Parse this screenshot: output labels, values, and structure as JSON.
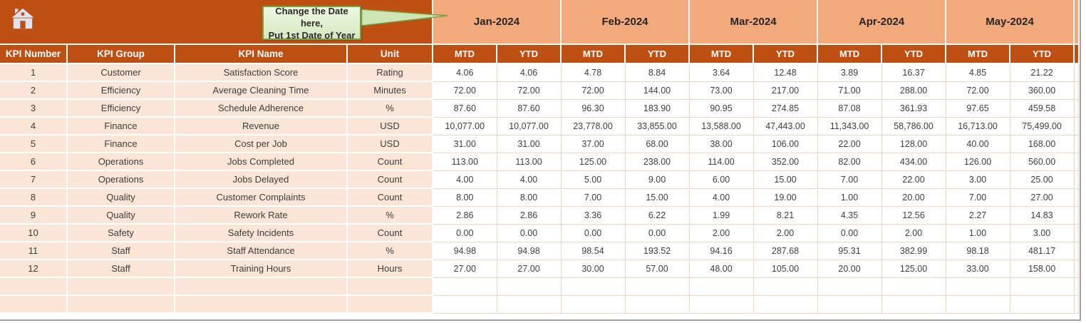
{
  "callout": {
    "line1": "Change the Date here,",
    "line2": "Put 1st Date of Year"
  },
  "months": [
    "Jan-2024",
    "Feb-2024",
    "Mar-2024",
    "Apr-2024",
    "May-2024"
  ],
  "subheaders": {
    "mtd": "MTD",
    "ytd": "YTD"
  },
  "left_headers": [
    "KPI Number",
    "KPI Group",
    "KPI Name",
    "Unit"
  ],
  "rows": [
    {
      "number": "1",
      "group": "Customer",
      "name": "Satisfaction Score",
      "unit": "Rating",
      "values": [
        "4.06",
        "4.06",
        "4.78",
        "8.84",
        "3.64",
        "12.48",
        "3.89",
        "16.37",
        "4.85",
        "21.22"
      ]
    },
    {
      "number": "2",
      "group": "Efficiency",
      "name": "Average Cleaning Time",
      "unit": "Minutes",
      "values": [
        "72.00",
        "72.00",
        "72.00",
        "144.00",
        "73.00",
        "217.00",
        "71.00",
        "288.00",
        "72.00",
        "360.00"
      ]
    },
    {
      "number": "3",
      "group": "Efficiency",
      "name": "Schedule Adherence",
      "unit": "%",
      "values": [
        "87.60",
        "87.60",
        "96.30",
        "183.90",
        "90.95",
        "274.85",
        "87.08",
        "361.93",
        "97.65",
        "459.58"
      ]
    },
    {
      "number": "4",
      "group": "Finance",
      "name": "Revenue",
      "unit": "USD",
      "values": [
        "10,077.00",
        "10,077.00",
        "23,778.00",
        "33,855.00",
        "13,588.00",
        "47,443.00",
        "11,343.00",
        "58,786.00",
        "16,713.00",
        "75,499.00"
      ]
    },
    {
      "number": "5",
      "group": "Finance",
      "name": "Cost per Job",
      "unit": "USD",
      "values": [
        "31.00",
        "31.00",
        "37.00",
        "68.00",
        "38.00",
        "106.00",
        "22.00",
        "128.00",
        "40.00",
        "168.00"
      ]
    },
    {
      "number": "6",
      "group": "Operations",
      "name": "Jobs Completed",
      "unit": "Count",
      "values": [
        "113.00",
        "113.00",
        "125.00",
        "238.00",
        "114.00",
        "352.00",
        "82.00",
        "434.00",
        "126.00",
        "560.00"
      ]
    },
    {
      "number": "7",
      "group": "Operations",
      "name": "Jobs Delayed",
      "unit": "Count",
      "values": [
        "4.00",
        "4.00",
        "5.00",
        "9.00",
        "6.00",
        "15.00",
        "7.00",
        "22.00",
        "3.00",
        "25.00"
      ]
    },
    {
      "number": "8",
      "group": "Quality",
      "name": "Customer Complaints",
      "unit": "Count",
      "values": [
        "8.00",
        "8.00",
        "7.00",
        "15.00",
        "4.00",
        "19.00",
        "1.00",
        "20.00",
        "7.00",
        "27.00"
      ]
    },
    {
      "number": "9",
      "group": "Quality",
      "name": "Rework Rate",
      "unit": "%",
      "values": [
        "2.86",
        "2.86",
        "3.36",
        "6.22",
        "1.99",
        "8.21",
        "4.35",
        "12.56",
        "2.27",
        "14.83"
      ]
    },
    {
      "number": "10",
      "group": "Safety",
      "name": "Safety Incidents",
      "unit": "Count",
      "values": [
        "0.00",
        "0.00",
        "0.00",
        "0.00",
        "2.00",
        "2.00",
        "0.00",
        "2.00",
        "1.00",
        "3.00"
      ]
    },
    {
      "number": "11",
      "group": "Staff",
      "name": "Staff Attendance",
      "unit": "%",
      "values": [
        "94.98",
        "94.98",
        "98.54",
        "193.52",
        "94.16",
        "287.68",
        "95.31",
        "382.99",
        "98.18",
        "481.17"
      ]
    },
    {
      "number": "12",
      "group": "Staff",
      "name": "Training Hours",
      "unit": "Hours",
      "values": [
        "27.00",
        "27.00",
        "30.00",
        "57.00",
        "48.00",
        "105.00",
        "20.00",
        "125.00",
        "33.00",
        "158.00"
      ]
    }
  ],
  "empty_row_count": 2,
  "colors": {
    "dark_orange": "#BE5014",
    "salmon": "#F2A97C",
    "peach": "#FBE5D6",
    "grid_line": "#f5d3be",
    "callout_fill": "#dcedc9",
    "callout_border": "#76a13f",
    "home_icon": "#dbe4f0"
  }
}
